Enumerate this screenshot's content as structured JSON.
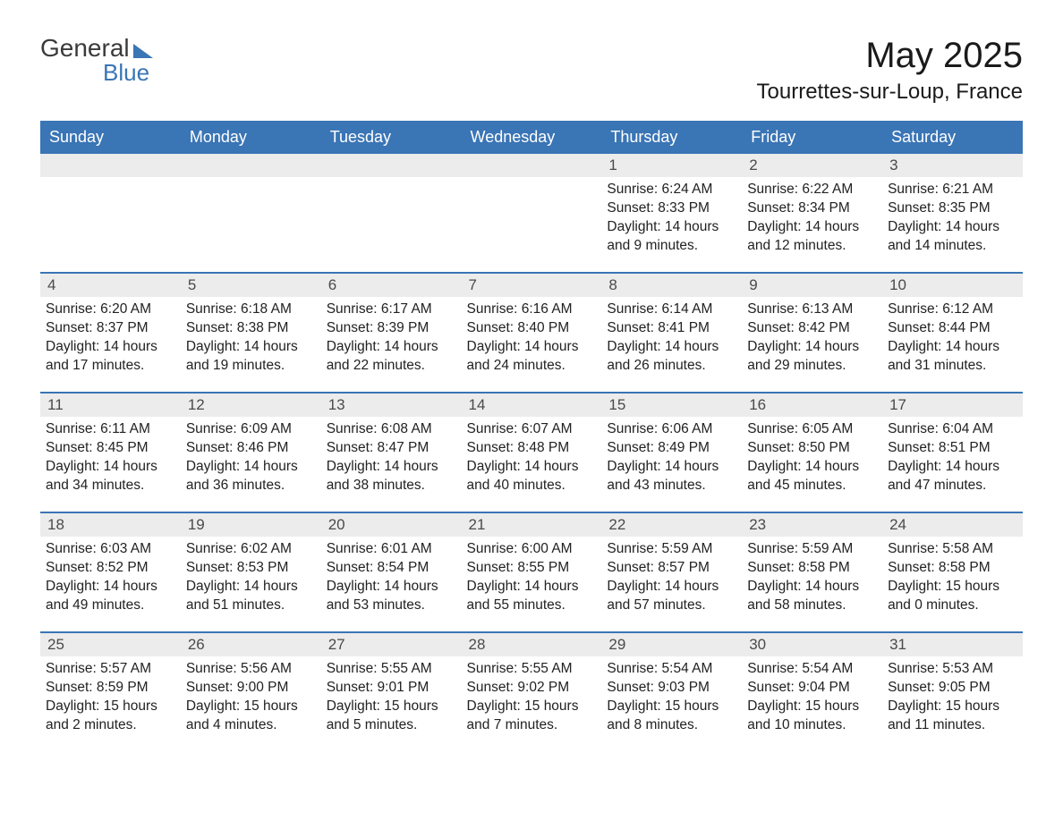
{
  "logo": {
    "text1": "General",
    "text2": "Blue"
  },
  "title": "May 2025",
  "location": "Tourrettes-sur-Loup, France",
  "headerColor": "#3a75b5",
  "headerTextColor": "#ffffff",
  "dayNumBg": "#ececec",
  "borderColor": "#3a75b5",
  "bodyTextColor": "#222222",
  "columns": [
    "Sunday",
    "Monday",
    "Tuesday",
    "Wednesday",
    "Thursday",
    "Friday",
    "Saturday"
  ],
  "weeks": [
    [
      null,
      null,
      null,
      null,
      {
        "n": "1",
        "sunrise": "6:24 AM",
        "sunset": "8:33 PM",
        "dh": 14,
        "dm": 9
      },
      {
        "n": "2",
        "sunrise": "6:22 AM",
        "sunset": "8:34 PM",
        "dh": 14,
        "dm": 12
      },
      {
        "n": "3",
        "sunrise": "6:21 AM",
        "sunset": "8:35 PM",
        "dh": 14,
        "dm": 14
      }
    ],
    [
      {
        "n": "4",
        "sunrise": "6:20 AM",
        "sunset": "8:37 PM",
        "dh": 14,
        "dm": 17
      },
      {
        "n": "5",
        "sunrise": "6:18 AM",
        "sunset": "8:38 PM",
        "dh": 14,
        "dm": 19
      },
      {
        "n": "6",
        "sunrise": "6:17 AM",
        "sunset": "8:39 PM",
        "dh": 14,
        "dm": 22
      },
      {
        "n": "7",
        "sunrise": "6:16 AM",
        "sunset": "8:40 PM",
        "dh": 14,
        "dm": 24
      },
      {
        "n": "8",
        "sunrise": "6:14 AM",
        "sunset": "8:41 PM",
        "dh": 14,
        "dm": 26
      },
      {
        "n": "9",
        "sunrise": "6:13 AM",
        "sunset": "8:42 PM",
        "dh": 14,
        "dm": 29
      },
      {
        "n": "10",
        "sunrise": "6:12 AM",
        "sunset": "8:44 PM",
        "dh": 14,
        "dm": 31
      }
    ],
    [
      {
        "n": "11",
        "sunrise": "6:11 AM",
        "sunset": "8:45 PM",
        "dh": 14,
        "dm": 34
      },
      {
        "n": "12",
        "sunrise": "6:09 AM",
        "sunset": "8:46 PM",
        "dh": 14,
        "dm": 36
      },
      {
        "n": "13",
        "sunrise": "6:08 AM",
        "sunset": "8:47 PM",
        "dh": 14,
        "dm": 38
      },
      {
        "n": "14",
        "sunrise": "6:07 AM",
        "sunset": "8:48 PM",
        "dh": 14,
        "dm": 40
      },
      {
        "n": "15",
        "sunrise": "6:06 AM",
        "sunset": "8:49 PM",
        "dh": 14,
        "dm": 43
      },
      {
        "n": "16",
        "sunrise": "6:05 AM",
        "sunset": "8:50 PM",
        "dh": 14,
        "dm": 45
      },
      {
        "n": "17",
        "sunrise": "6:04 AM",
        "sunset": "8:51 PM",
        "dh": 14,
        "dm": 47
      }
    ],
    [
      {
        "n": "18",
        "sunrise": "6:03 AM",
        "sunset": "8:52 PM",
        "dh": 14,
        "dm": 49
      },
      {
        "n": "19",
        "sunrise": "6:02 AM",
        "sunset": "8:53 PM",
        "dh": 14,
        "dm": 51
      },
      {
        "n": "20",
        "sunrise": "6:01 AM",
        "sunset": "8:54 PM",
        "dh": 14,
        "dm": 53
      },
      {
        "n": "21",
        "sunrise": "6:00 AM",
        "sunset": "8:55 PM",
        "dh": 14,
        "dm": 55
      },
      {
        "n": "22",
        "sunrise": "5:59 AM",
        "sunset": "8:57 PM",
        "dh": 14,
        "dm": 57
      },
      {
        "n": "23",
        "sunrise": "5:59 AM",
        "sunset": "8:58 PM",
        "dh": 14,
        "dm": 58
      },
      {
        "n": "24",
        "sunrise": "5:58 AM",
        "sunset": "8:58 PM",
        "dh": 15,
        "dm": 0
      }
    ],
    [
      {
        "n": "25",
        "sunrise": "5:57 AM",
        "sunset": "8:59 PM",
        "dh": 15,
        "dm": 2
      },
      {
        "n": "26",
        "sunrise": "5:56 AM",
        "sunset": "9:00 PM",
        "dh": 15,
        "dm": 4
      },
      {
        "n": "27",
        "sunrise": "5:55 AM",
        "sunset": "9:01 PM",
        "dh": 15,
        "dm": 5
      },
      {
        "n": "28",
        "sunrise": "5:55 AM",
        "sunset": "9:02 PM",
        "dh": 15,
        "dm": 7
      },
      {
        "n": "29",
        "sunrise": "5:54 AM",
        "sunset": "9:03 PM",
        "dh": 15,
        "dm": 8
      },
      {
        "n": "30",
        "sunrise": "5:54 AM",
        "sunset": "9:04 PM",
        "dh": 15,
        "dm": 10
      },
      {
        "n": "31",
        "sunrise": "5:53 AM",
        "sunset": "9:05 PM",
        "dh": 15,
        "dm": 11
      }
    ]
  ],
  "labels": {
    "sunrise": "Sunrise:",
    "sunset": "Sunset:",
    "daylight_prefix": "Daylight:",
    "hours_word": "hours",
    "and_word": "and",
    "minutes_word": "minutes."
  }
}
